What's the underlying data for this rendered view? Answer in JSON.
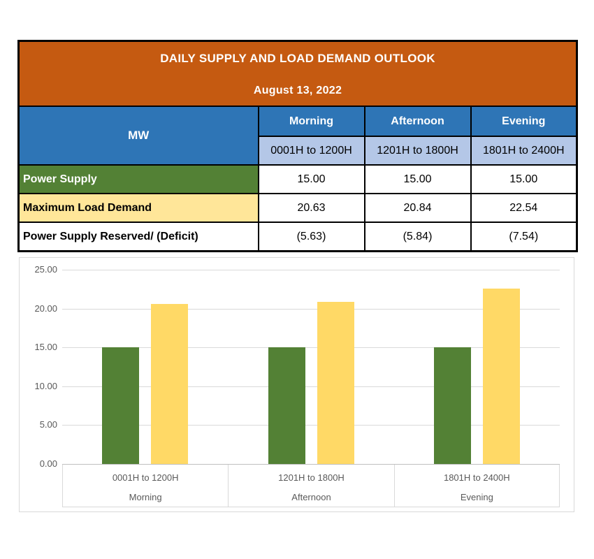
{
  "report": {
    "title": "DAILY SUPPLY AND LOAD DEMAND OUTLOOK",
    "date": "August 13, 2022",
    "unit_label": "MW",
    "periods": [
      {
        "name": "Morning",
        "hours": "0001H to 1200H"
      },
      {
        "name": "Afternoon",
        "hours": "1201H to 1800H"
      },
      {
        "name": "Evening",
        "hours": "1801H to 2400H"
      }
    ],
    "rows": [
      {
        "label": "Power Supply",
        "values": [
          "15.00",
          "15.00",
          "15.00"
        ]
      },
      {
        "label": "Maximum Load Demand",
        "values": [
          "20.63",
          "20.84",
          "22.54"
        ]
      },
      {
        "label": "Power Supply Reserved/ (Deficit)",
        "values": [
          "(5.63)",
          "(5.84)",
          "(7.54)"
        ]
      }
    ]
  },
  "colors": {
    "banner_orange": "#C55A11",
    "header_blue": "#2E75B6",
    "subheader_light_blue": "#B4C7E7",
    "supply_green": "#538135",
    "demand_yellow_row": "#FFE699",
    "bar_green": "#538135",
    "bar_yellow": "#FFD966",
    "chart_text_gray": "#595959",
    "gridline_gray": "#D9D9D9",
    "table_border": "#000000"
  },
  "chart_data": {
    "type": "bar",
    "categories": [
      "0001H to 1200H",
      "1201H to 1800H",
      "1801H to 2400H"
    ],
    "category_groups": [
      "Morning",
      "Afternoon",
      "Evening"
    ],
    "series": [
      {
        "name": "Power Supply",
        "color": "#538135",
        "values": [
          15.0,
          15.0,
          15.0
        ]
      },
      {
        "name": "Maximum Load Demand",
        "color": "#FFD966",
        "values": [
          20.63,
          20.84,
          22.54
        ]
      }
    ],
    "title": "",
    "xlabel": "",
    "ylabel": "",
    "ylim": [
      0,
      25
    ],
    "ytick_step": 5,
    "ytick_labels": [
      "0.00",
      "5.00",
      "10.00",
      "15.00",
      "20.00",
      "25.00"
    ],
    "grid": true,
    "legend_position": "none"
  }
}
